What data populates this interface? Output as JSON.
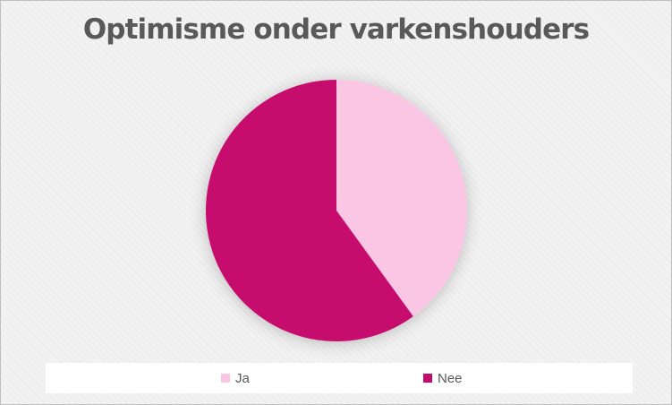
{
  "chart_data": {
    "type": "pie",
    "title": "Optimisme onder varkenshouders",
    "categories": [
      "Ja",
      "Nee"
    ],
    "values": [
      40,
      60
    ],
    "colors": [
      "#fbc6e3",
      "#c60b6e"
    ],
    "start_angle": "12 o'clock",
    "direction": "clockwise",
    "legend_position": "bottom"
  }
}
